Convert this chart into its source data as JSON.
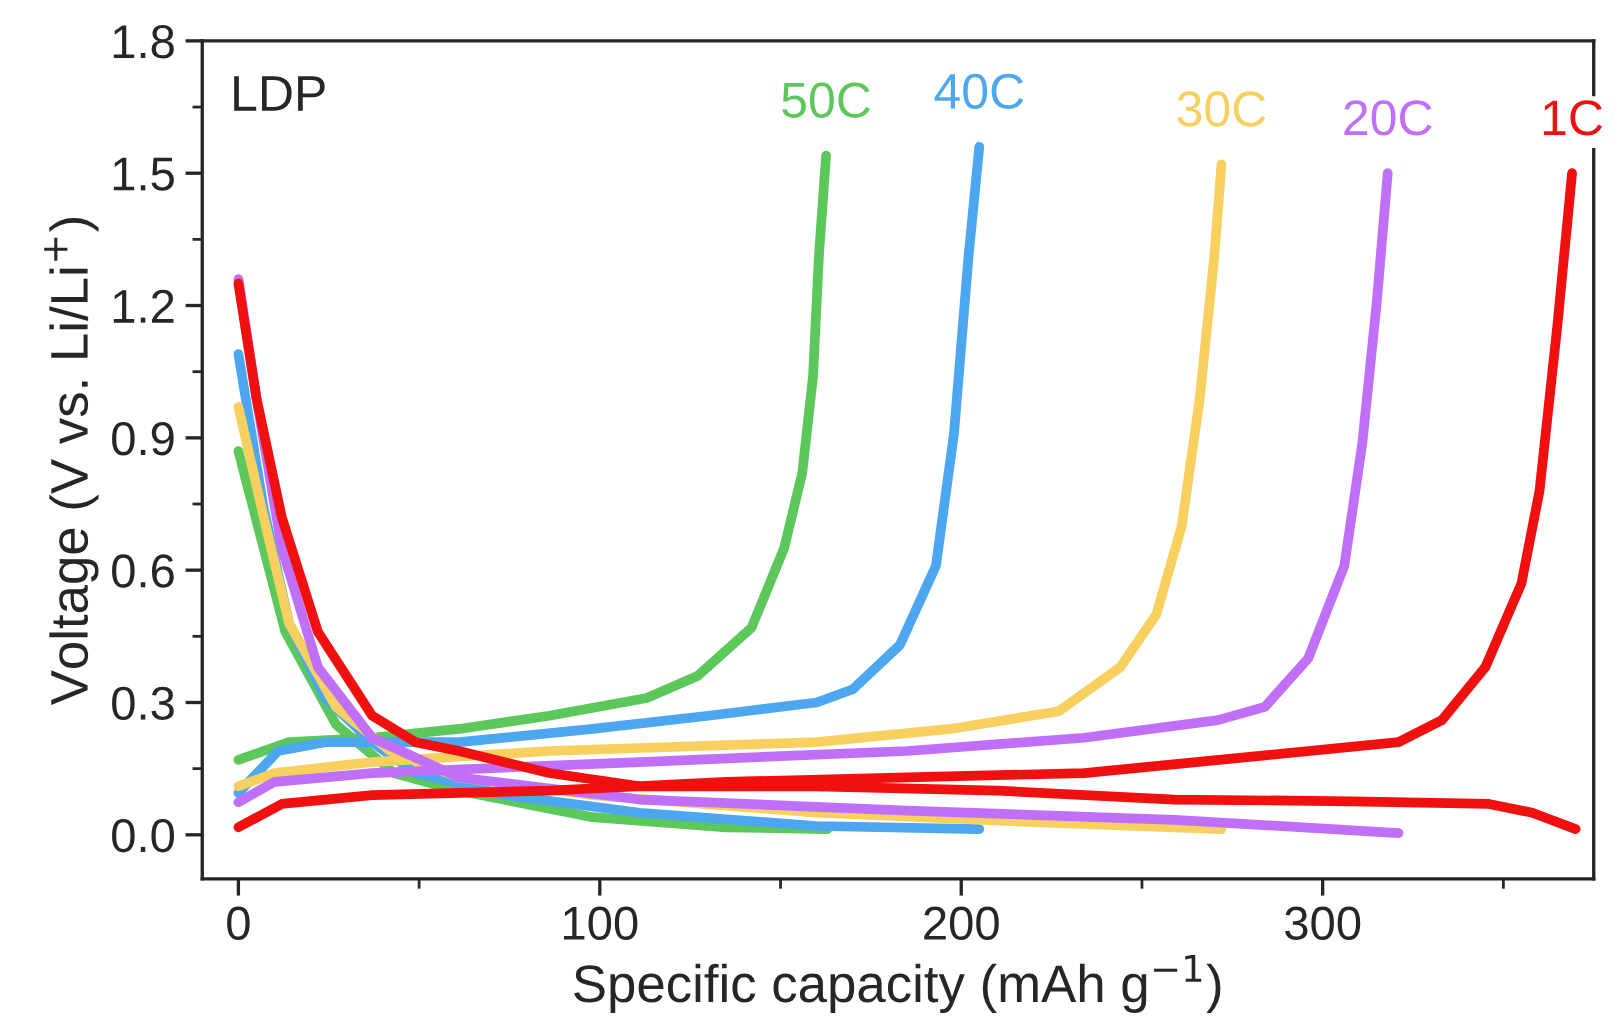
{
  "chart_data": {
    "type": "line",
    "xlabel": "Specific capacity (mAh g$^{−1}$)",
    "ylabel": "Voltage (V vs. Li/Li$^{+}$)",
    "annotations": [
      "LDP"
    ],
    "xlim": [
      -10,
      375
    ],
    "xticks": [
      0,
      100,
      200,
      300
    ],
    "ylim": [
      -0.1,
      1.8
    ],
    "yticks": [
      {
        "value": 0,
        "label": "0.0"
      },
      0.3,
      0.6,
      0.9,
      1.2,
      1.5,
      1.8
    ],
    "grid": false,
    "legend": false,
    "marker": "none",
    "line_style": "solid",
    "series": [
      {
        "name": "50C",
        "color": "#5cc85c",
        "x": [
          0,
          13,
          27,
          43,
          61,
          98,
          135,
          163,
          null,
          0,
          14,
          37,
          61,
          86,
          113,
          127,
          142,
          151,
          156,
          159,
          160.6,
          162.6
        ],
        "values": [
          0.87,
          0.46,
          0.25,
          0.14,
          0.1,
          0.04,
          0.017,
          0.013,
          null,
          0.17,
          0.21,
          0.22,
          0.24,
          0.27,
          0.31,
          0.36,
          0.47,
          0.65,
          0.82,
          1.04,
          1.31,
          1.54
        ]
      },
      {
        "name": "40C",
        "color": "#4da6f0",
        "x": [
          0,
          7,
          14,
          24,
          37,
          49,
          74,
          111,
          160,
          205,
          null,
          0,
          11,
          24,
          61,
          98,
          130,
          160,
          170,
          183,
          193,
          198,
          202,
          205
        ],
        "values": [
          1.09,
          0.74,
          0.48,
          0.31,
          0.21,
          0.14,
          0.09,
          0.05,
          0.02,
          0.013,
          null,
          0.095,
          0.19,
          0.21,
          0.21,
          0.24,
          0.27,
          0.3,
          0.33,
          0.43,
          0.61,
          0.91,
          1.31,
          1.56
        ]
      },
      {
        "name": "30C",
        "color": "#f8d060",
        "x": [
          0,
          7,
          14,
          27,
          42,
          61,
          98,
          160,
          222,
          272,
          null,
          0,
          10,
          37,
          86,
          160,
          197,
          227,
          244,
          254,
          261,
          266,
          270,
          272
        ],
        "values": [
          0.97,
          0.72,
          0.48,
          0.29,
          0.19,
          0.13,
          0.09,
          0.05,
          0.028,
          0.013,
          null,
          0.11,
          0.14,
          0.165,
          0.19,
          0.21,
          0.24,
          0.28,
          0.38,
          0.5,
          0.7,
          0.99,
          1.31,
          1.52
        ]
      },
      {
        "name": "20C",
        "color": "#c070f8",
        "x": [
          0,
          5,
          12,
          22,
          37,
          61,
          111,
          185,
          259,
          321,
          null,
          0,
          10,
          37,
          111,
          185,
          234,
          271,
          284,
          296,
          306,
          311,
          315,
          318
        ],
        "values": [
          1.26,
          0.99,
          0.65,
          0.38,
          0.22,
          0.13,
          0.08,
          0.055,
          0.034,
          0.004,
          null,
          0.074,
          0.12,
          0.14,
          0.165,
          0.19,
          0.22,
          0.26,
          0.29,
          0.4,
          0.61,
          0.89,
          1.21,
          1.5
        ]
      },
      {
        "name": "1C",
        "color": "#f01010",
        "x": [
          0,
          5,
          12,
          22,
          37,
          49,
          61,
          86,
          111,
          160,
          210,
          259,
          308,
          346,
          358,
          370,
          null,
          0,
          12,
          37,
          86,
          135,
          185,
          234,
          284,
          321,
          333,
          345,
          355,
          360,
          365,
          369
        ],
        "values": [
          1.25,
          0.99,
          0.72,
          0.46,
          0.27,
          0.21,
          0.19,
          0.14,
          0.11,
          0.11,
          0.1,
          0.08,
          0.076,
          0.07,
          0.05,
          0.013,
          null,
          0.017,
          0.07,
          0.09,
          0.1,
          0.12,
          0.13,
          0.14,
          0.18,
          0.21,
          0.26,
          0.38,
          0.57,
          0.78,
          1.16,
          1.5
        ]
      }
    ]
  }
}
